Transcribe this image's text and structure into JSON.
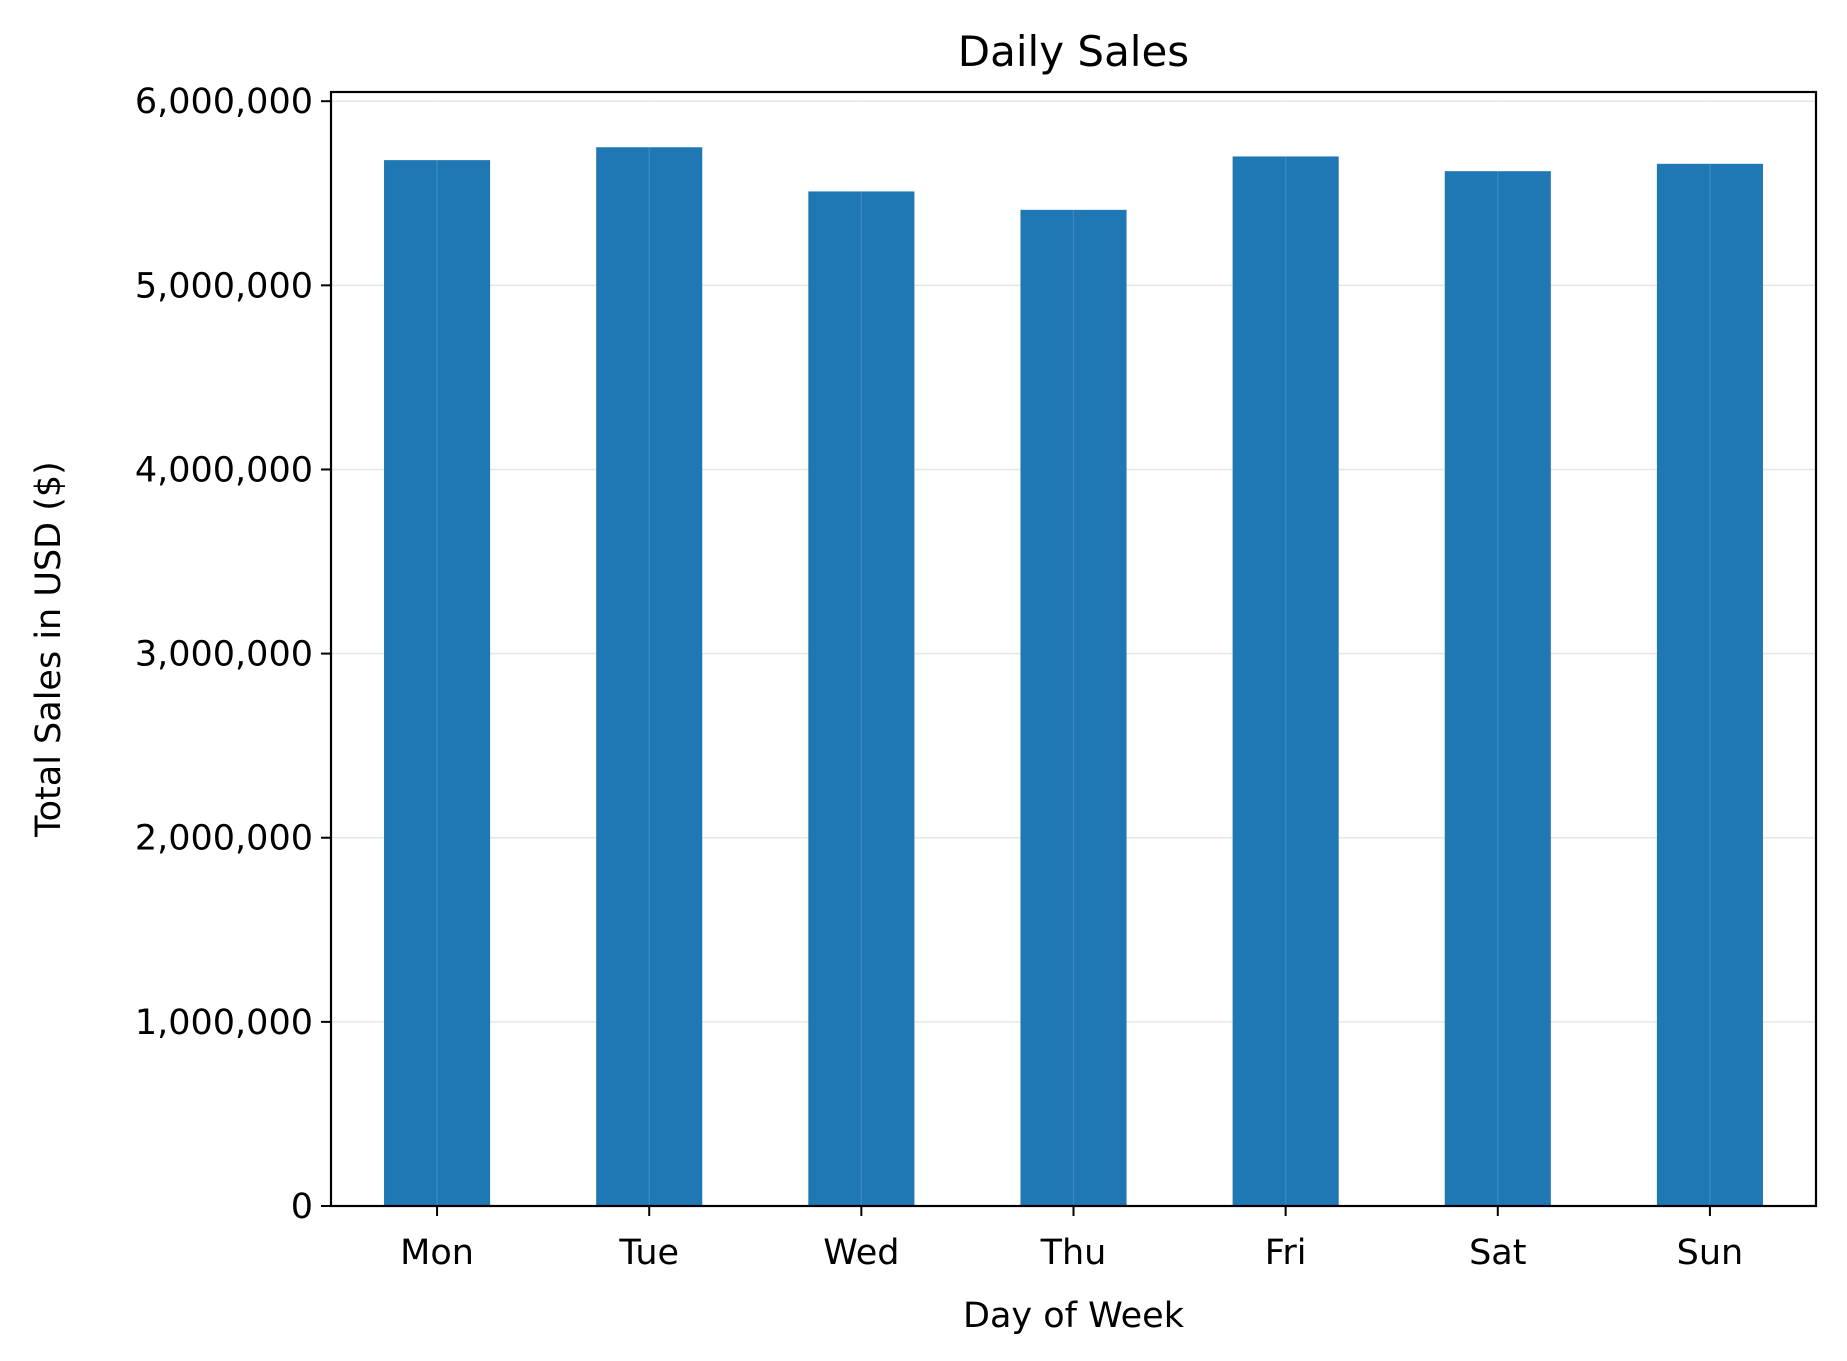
{
  "chart_data": {
    "type": "bar",
    "title": "Daily Sales",
    "xlabel": "Day of Week",
    "ylabel": "Total Sales in USD ($)",
    "categories": [
      "Mon",
      "Tue",
      "Wed",
      "Thu",
      "Fri",
      "Sat",
      "Sun"
    ],
    "values": [
      5680000,
      5750000,
      5510000,
      5410000,
      5700000,
      5620000,
      5660000
    ],
    "ylim": [
      0,
      6050000
    ],
    "yticks": [
      0,
      1000000,
      2000000,
      3000000,
      4000000,
      5000000,
      6000000
    ],
    "ytick_labels": [
      "0",
      "1,000,000",
      "2,000,000",
      "3,000,000",
      "4,000,000",
      "5,000,000",
      "6,000,000"
    ],
    "grid": true,
    "legend": false,
    "bar_color": "#1f77b4",
    "grid_color": "#e6e6e6"
  }
}
